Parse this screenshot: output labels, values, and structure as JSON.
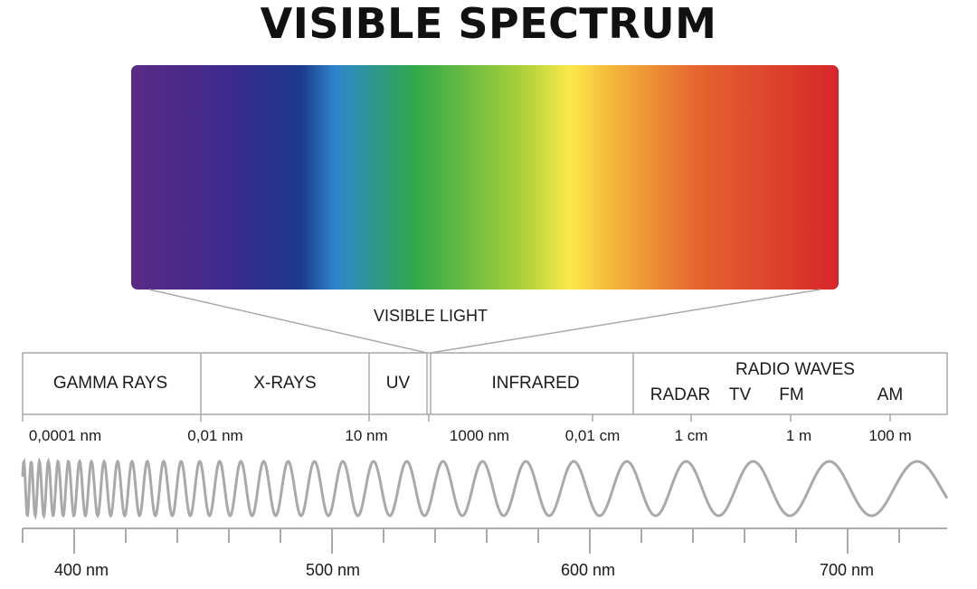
{
  "title": "VISIBLE SPECTRUM",
  "visible_light_label": "VISIBLE LIGHT",
  "spectrum_colors": [
    "#5b2a86",
    "#3c2a8c",
    "#1c3a8e",
    "#2f86cc",
    "#2fa84a",
    "#a8cf3a",
    "#fbe94a",
    "#f4b63c",
    "#e4652e",
    "#d7262a"
  ],
  "bands": [
    {
      "label": "GAMMA RAYS"
    },
    {
      "label": "X-RAYS"
    },
    {
      "label": "UV"
    },
    {
      "label": "INFRARED"
    },
    {
      "label": "RADIO WAVES",
      "sub": [
        "RADAR",
        "TV",
        "FM",
        "AM"
      ]
    }
  ],
  "wavelength_scale": [
    "0,0001 nm",
    "0,01 nm",
    "10 nm",
    "1000 nm",
    "0,01 cm",
    "1 cm",
    "1 m",
    "100 m"
  ],
  "nm_ruler": [
    "400 nm",
    "500 nm",
    "600 nm",
    "700 nm"
  ],
  "line_color": "#a9a9a9"
}
